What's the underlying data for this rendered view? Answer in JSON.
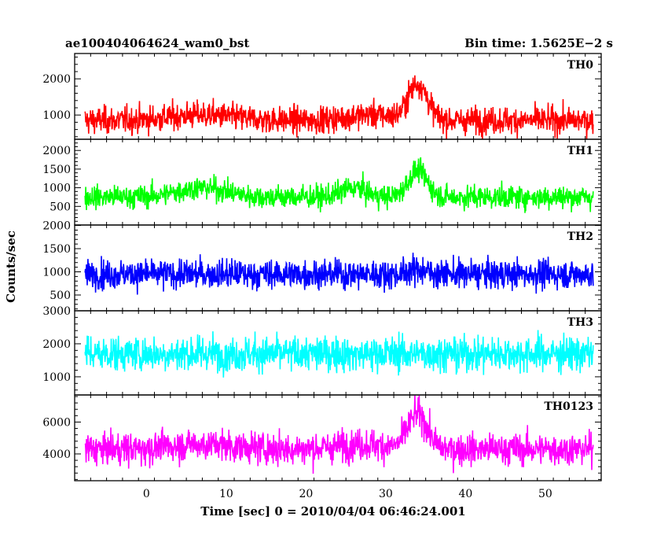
{
  "header": {
    "title": "ae100404064624_wam0_bst",
    "bin_time": "Bin time: 1.5625E−2 s"
  },
  "axes": {
    "ylabel": "Counts/sec",
    "xlabel": "Time [sec] 0 = 2010/04/04 06:46:24.001"
  },
  "chart_data": {
    "type": "line",
    "xlim": [
      -9,
      57
    ],
    "x_ticks": [
      0,
      10,
      20,
      30,
      40,
      50
    ],
    "data_x_range": [
      -7.7,
      56.0
    ],
    "panels": [
      {
        "name": "TH0",
        "color": "#ff0000",
        "ylim": [
          330,
          2700
        ],
        "y_ticks": [
          1000,
          2000
        ],
        "baseline": 850,
        "noise": 600,
        "peak": {
          "x": 34,
          "height": 1000,
          "width": 1.2
        },
        "bumps": [
          {
            "x": 7,
            "height": 150,
            "width": 4
          },
          {
            "x": 28,
            "height": 150,
            "width": 3
          }
        ]
      },
      {
        "name": "TH1",
        "color": "#00ff00",
        "ylim": [
          0,
          2300
        ],
        "y_ticks": [
          500,
          1000,
          1500,
          2000
        ],
        "baseline": 750,
        "noise": 500,
        "peak": {
          "x": 34,
          "height": 700,
          "width": 1.2
        },
        "bumps": [
          {
            "x": 7,
            "height": 250,
            "width": 3
          },
          {
            "x": 26,
            "height": 250,
            "width": 1.5
          }
        ]
      },
      {
        "name": "TH2",
        "color": "#0000ff",
        "ylim": [
          160,
          2010
        ],
        "y_ticks": [
          500,
          1000,
          1500,
          2000
        ],
        "baseline": 950,
        "noise": 500,
        "peak": {
          "x": 34,
          "height": 100,
          "width": 1.2
        },
        "bumps": []
      },
      {
        "name": "TH3",
        "color": "#00ffff",
        "ylim": [
          450,
          3000
        ],
        "y_ticks": [
          1000,
          2000,
          3000
        ],
        "baseline": 1700,
        "noise": 850,
        "peak": {
          "x": 34,
          "height": 0,
          "width": 1.2
        },
        "bumps": []
      },
      {
        "name": "TH0123",
        "color": "#ff00ff",
        "ylim": [
          2320,
          7700
        ],
        "y_ticks": [
          4000,
          6000
        ],
        "baseline": 4300,
        "noise": 1600,
        "peak": {
          "x": 34,
          "height": 2200,
          "width": 1.2
        },
        "bumps": [
          {
            "x": 7,
            "height": 300,
            "width": 4
          },
          {
            "x": 27,
            "height": 300,
            "width": 3
          }
        ]
      }
    ]
  }
}
